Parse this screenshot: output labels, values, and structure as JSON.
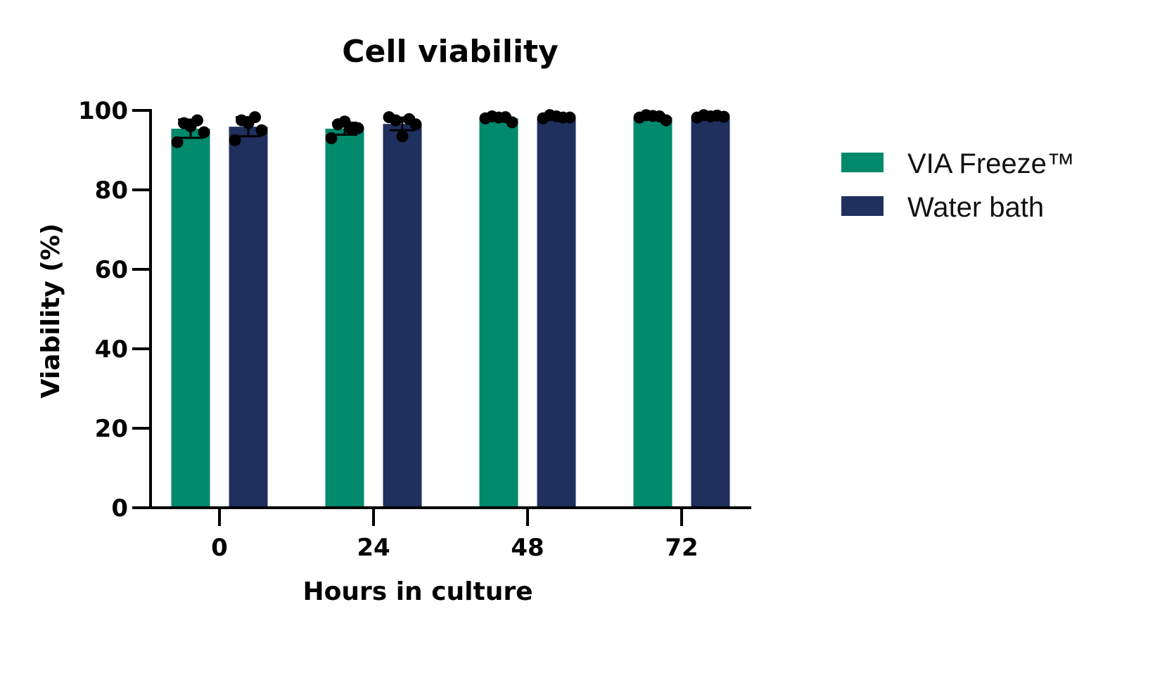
{
  "chart_data": {
    "type": "bar",
    "title": "Cell viability",
    "xlabel": "Hours in culture",
    "ylabel": "Viability (%)",
    "categories": [
      "0",
      "24",
      "48",
      "72"
    ],
    "ylim": [
      0,
      100
    ],
    "yticks": [
      0,
      20,
      40,
      60,
      80,
      100
    ],
    "grid": false,
    "legend_position": "right",
    "series": [
      {
        "name": "VIA Freeze™",
        "color": "#00896B",
        "values": [
          95.4,
          95.4,
          98.0,
          98.3
        ],
        "error": [
          2.3,
          1.5,
          0.5,
          0.5
        ],
        "points": [
          [
            92.0,
            96.8,
            96.0,
            97.5,
            94.5
          ],
          [
            93.0,
            96.5,
            97.2,
            95.3,
            95.5
          ],
          [
            98.0,
            98.5,
            98.2,
            98.3,
            97.0
          ],
          [
            98.2,
            98.8,
            98.6,
            98.5,
            97.5
          ]
        ]
      },
      {
        "name": "Water bath",
        "color": "#1F2F5E",
        "values": [
          95.9,
          96.6,
          98.2,
          98.4
        ],
        "error": [
          2.4,
          1.6,
          0.4,
          0.3
        ],
        "points": [
          [
            92.5,
            97.5,
            96.8,
            98.3,
            95.0
          ],
          [
            98.3,
            97.5,
            93.5,
            97.8,
            96.5
          ],
          [
            98.0,
            98.8,
            98.5,
            98.2,
            98.2
          ],
          [
            98.2,
            98.8,
            98.5,
            98.7,
            98.4
          ]
        ]
      }
    ]
  }
}
